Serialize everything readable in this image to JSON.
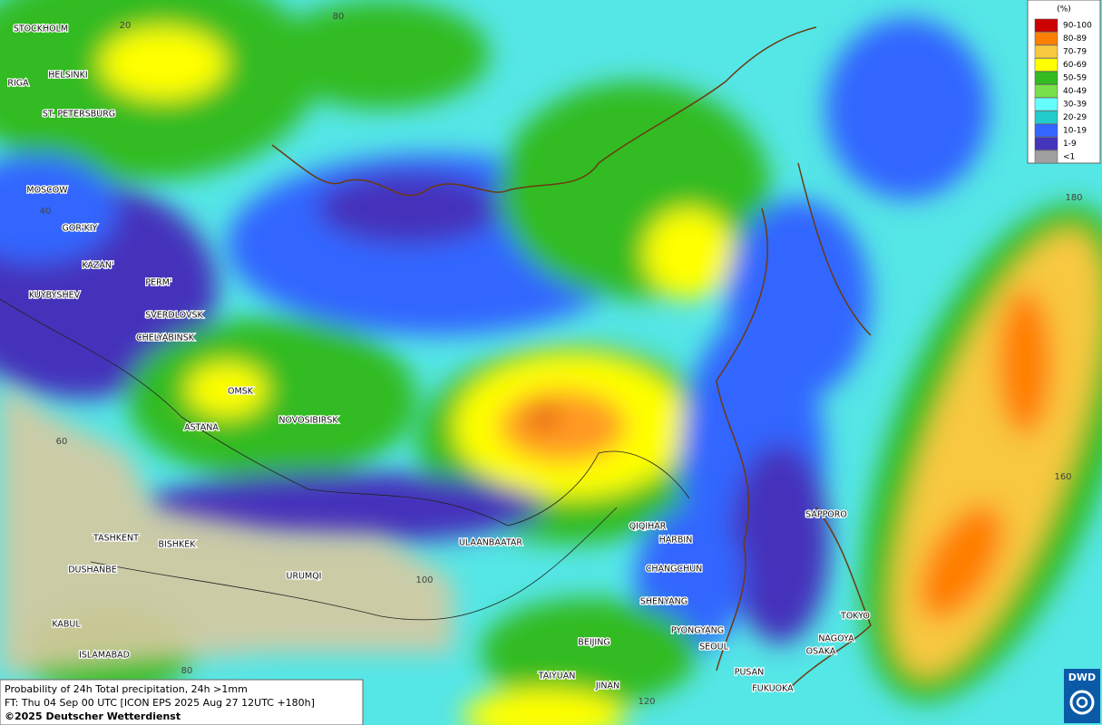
{
  "legend": {
    "title": "(%)",
    "items": [
      {
        "label": "90-100",
        "color": "#cc0000"
      },
      {
        "label": "80-89",
        "color": "#ff7f00"
      },
      {
        "label": "70-79",
        "color": "#f8c840"
      },
      {
        "label": "60-69",
        "color": "#ffff00"
      },
      {
        "label": "50-59",
        "color": "#33bb22"
      },
      {
        "label": "40-49",
        "color": "#77e04a"
      },
      {
        "label": "30-39",
        "color": "#66ffff"
      },
      {
        "label": "20-29",
        "color": "#22cccc"
      },
      {
        "label": "10-19",
        "color": "#3366ff"
      },
      {
        "label": "1-9",
        "color": "#4433bb"
      },
      {
        "label": "<1",
        "color": "#a0a0a0"
      }
    ]
  },
  "cities": [
    "STOCKHOLM",
    "HELSINKI",
    "RIGA",
    "ST. PETERSBURG",
    "MOSCOW",
    "GOR'KIY",
    "KAZAN'",
    "PERM'",
    "KUYBYSHEV",
    "SVERDLOVSK",
    "CHELYABINSK",
    "OMSK",
    "NOVOSIBIRSK",
    "ASTANA",
    "TASHKENT",
    "BISHKEK",
    "DUSHANBE",
    "URUMQI",
    "KABUL",
    "ISLAMABAD",
    "ULAANBAATAR",
    "QIQIHAR",
    "HARBIN",
    "CHANGCHUN",
    "SHENYANG",
    "PYONGYANG",
    "SEOUL",
    "BEIJING",
    "TAIYUAN",
    "JINAN",
    "PUSAN",
    "FUKUOKA",
    "OSAKA",
    "NAGOYA",
    "TOKYO",
    "SAPPORO"
  ],
  "grid_labels": [
    "20",
    "80",
    "40",
    "60",
    "100",
    "80",
    "120",
    "180",
    "160"
  ],
  "footer": {
    "line1": "Probability of 24h Total precipitation, 24h >1mm",
    "line2": "FT: Thu 04 Sep 00 UTC [ICON EPS 2025 Aug 27 12UTC +180h]",
    "line3": "©2025 Deutscher Wetterdienst"
  },
  "logo": "DWD"
}
